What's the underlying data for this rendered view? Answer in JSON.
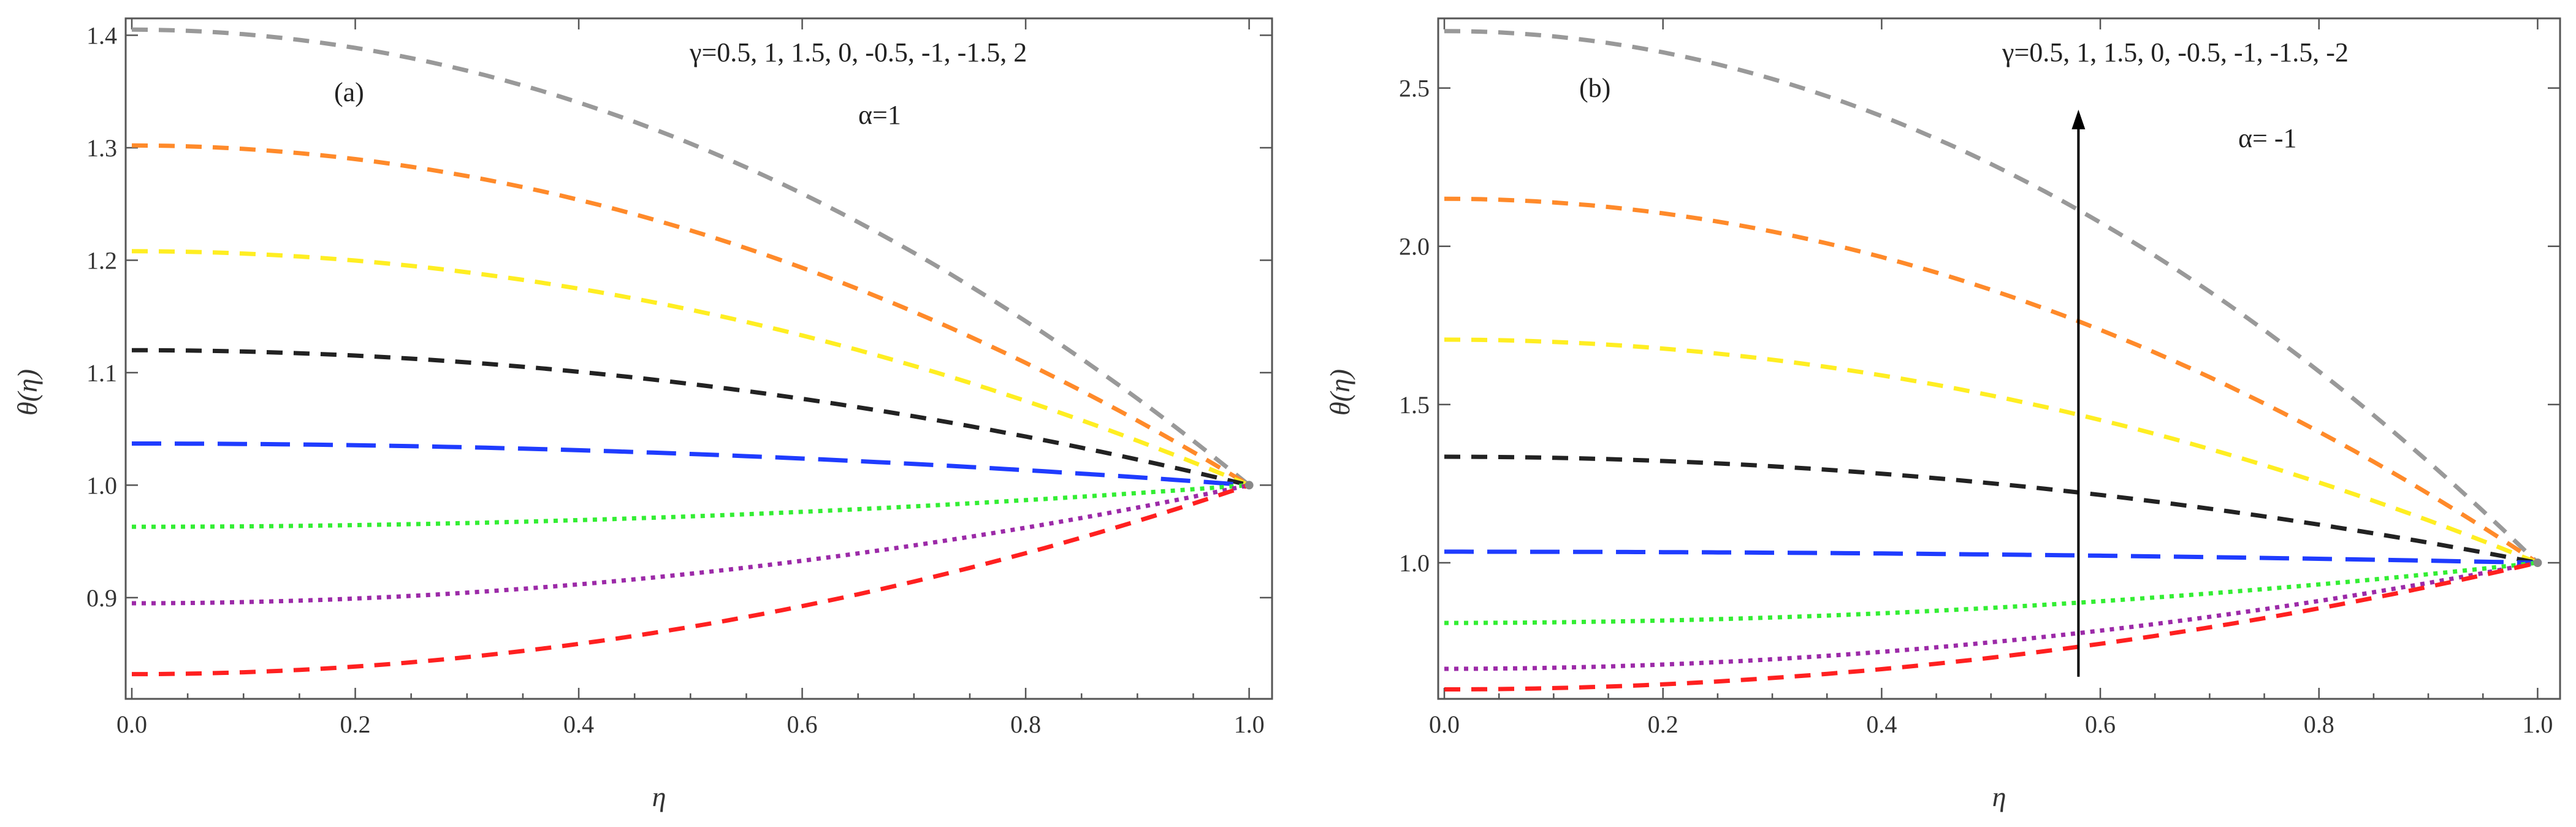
{
  "chart_data": [
    {
      "type": "line",
      "panel_label": "(a)",
      "param_text": "γ=0.5, 1, 1.5, 0, -0.5, -1, -1.5, 2",
      "alpha_text": "α=1",
      "xlabel": "η",
      "ylabel": "θ(η)",
      "xlim": [
        0,
        1.0
      ],
      "ylim": [
        0.81,
        1.415
      ],
      "xticks": [
        "0.0",
        "0.2",
        "0.4",
        "0.6",
        "0.8",
        "1.0"
      ],
      "yticks": [
        "0.9",
        "1.0",
        "1.1",
        "1.2",
        "1.3",
        "1.4"
      ],
      "has_arrow": false,
      "series": [
        {
          "name": "gray",
          "color": "#999999",
          "dash": "dashed",
          "y0": 1.405
        },
        {
          "name": "orange",
          "color": "#ff8a2a",
          "dash": "dashed",
          "y0": 1.302
        },
        {
          "name": "yellow",
          "color": "#ffee22",
          "dash": "dashed",
          "y0": 1.208
        },
        {
          "name": "black",
          "color": "#222222",
          "dash": "dashed",
          "y0": 1.12
        },
        {
          "name": "blue",
          "color": "#1f3cff",
          "dash": "longdash",
          "y0": 1.037
        },
        {
          "name": "green",
          "color": "#33ee33",
          "dash": "dotted",
          "y0": 0.963
        },
        {
          "name": "purple",
          "color": "#9c2aa8",
          "dash": "dotted",
          "y0": 0.895
        },
        {
          "name": "red",
          "color": "#ff2020",
          "dash": "dashed",
          "y0": 0.832
        }
      ]
    },
    {
      "type": "line",
      "panel_label": "(b)",
      "param_text": "γ=0.5, 1, 1.5, 0, -0.5, -1, -1.5, -2",
      "alpha_text": "α= -1",
      "xlabel": "η",
      "ylabel": "θ(η)",
      "xlim": [
        0,
        1.0
      ],
      "ylim": [
        0.57,
        2.72
      ],
      "xticks": [
        "0.0",
        "0.2",
        "0.4",
        "0.6",
        "0.8",
        "1.0"
      ],
      "yticks": [
        "1.0",
        "1.5",
        "2.0",
        "2.5"
      ],
      "has_arrow": true,
      "arrow_x": 0.58,
      "arrow_y_from": 0.64,
      "arrow_y_to": 2.42,
      "series": [
        {
          "name": "gray",
          "color": "#999999",
          "dash": "dashed",
          "y0": 2.68
        },
        {
          "name": "orange",
          "color": "#ff8a2a",
          "dash": "dashed",
          "y0": 2.15
        },
        {
          "name": "yellow",
          "color": "#ffee22",
          "dash": "dashed",
          "y0": 1.705
        },
        {
          "name": "black",
          "color": "#222222",
          "dash": "dashed",
          "y0": 1.335
        },
        {
          "name": "blue",
          "color": "#1f3cff",
          "dash": "longdash",
          "y0": 1.035
        },
        {
          "name": "green",
          "color": "#33ee33",
          "dash": "dotted",
          "y0": 0.81
        },
        {
          "name": "purple",
          "color": "#9c2aa8",
          "dash": "dotted",
          "y0": 0.665
        },
        {
          "name": "red",
          "color": "#ff2020",
          "dash": "dashed",
          "y0": 0.6
        }
      ]
    }
  ]
}
